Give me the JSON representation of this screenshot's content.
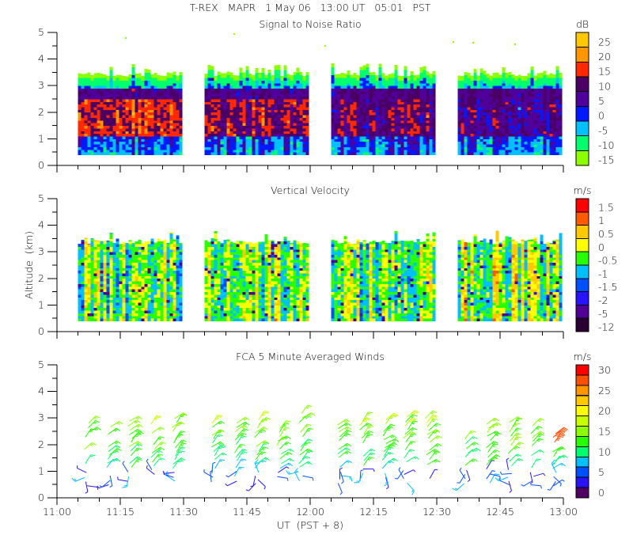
{
  "header": {
    "title": "T-REX   MAPR   1 May 06   13:00 UT   05:01   PST"
  },
  "x_axis": {
    "label": "UT  (PST + 8)",
    "range": [
      "11:00",
      "13:00"
    ],
    "tick_labels": [
      "11:00",
      "11:15",
      "11:30",
      "11:45",
      "12:00",
      "12:15",
      "12:30",
      "12:45",
      "13:00"
    ],
    "minor_tick_interval_min": 5
  },
  "y_axis": {
    "label": "Altitude  (km)",
    "range": [
      0,
      5
    ],
    "tick_labels": [
      "0",
      "1",
      "2",
      "3",
      "4",
      "5"
    ]
  },
  "chart_data": [
    {
      "type": "heatmap",
      "title": "Signal to Noise Ratio",
      "unit": "dB",
      "xlim": [
        "11:00",
        "13:00"
      ],
      "ylim": [
        0,
        5
      ],
      "data_blocks_ut": [
        [
          "11:05",
          "11:30"
        ],
        [
          "11:35",
          "12:00"
        ],
        [
          "12:05",
          "12:30"
        ],
        [
          "12:35",
          "13:00"
        ]
      ],
      "data_altitude_km": [
        0.4,
        3.7
      ],
      "colorbar": {
        "labels": [
          "25",
          "20",
          "15",
          "10",
          "5",
          "0",
          "-5",
          "-10",
          "-15"
        ],
        "colors": [
          "#ffc800",
          "#ff9600",
          "#ff2800",
          "#4b0064",
          "#50009b",
          "#0019ff",
          "#00c0ff",
          "#00ff6e",
          "#8cff00"
        ]
      }
    },
    {
      "type": "heatmap",
      "title": "Vertical Velocity",
      "unit": "m/s",
      "xlim": [
        "11:00",
        "13:00"
      ],
      "ylim": [
        0,
        5
      ],
      "data_blocks_ut": [
        [
          "11:05",
          "11:30"
        ],
        [
          "11:35",
          "12:00"
        ],
        [
          "12:05",
          "12:30"
        ],
        [
          "12:35",
          "13:00"
        ]
      ],
      "data_altitude_km": [
        0.4,
        3.6
      ],
      "colorbar": {
        "labels": [
          "1.5",
          "1",
          "0.5",
          "0",
          "-0.5",
          "-1",
          "-1.5",
          "-2",
          "-5",
          "-12"
        ],
        "colors": [
          "#ff0000",
          "#ff5a00",
          "#ffc800",
          "#ffff00",
          "#28ff00",
          "#00c0ff",
          "#0050ff",
          "#2814ff",
          "#500096",
          "#280032"
        ]
      }
    },
    {
      "type": "wind-barbs",
      "title": "FCA 5 Minute Averaged Winds",
      "unit": "m/s",
      "xlim": [
        "11:00",
        "13:00"
      ],
      "ylim": [
        0,
        5
      ],
      "data_altitude_km": [
        0.3,
        3.8
      ],
      "colorbar": {
        "labels": [
          "30",
          "",
          "25",
          "",
          "20",
          "",
          "15",
          "",
          "10",
          "",
          "5",
          "",
          "0"
        ],
        "colors": [
          "#ff0000",
          "#ff5000",
          "#ff9600",
          "#ffc800",
          "#ffff00",
          "#c8ff00",
          "#8cff00",
          "#28ff00",
          "#00ff6e",
          "#00c0ff",
          "#0050ff",
          "#2814ff",
          "#500064"
        ]
      }
    }
  ]
}
